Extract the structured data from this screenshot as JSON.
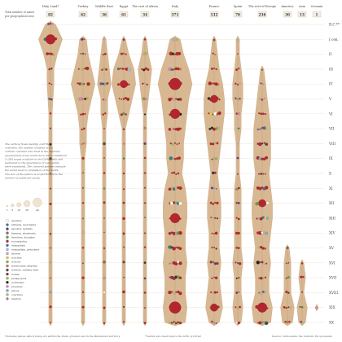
{
  "header": {
    "total_label": "Total number of saints per geographical area"
  },
  "colors": {
    "shape_fill": "#d8b893",
    "shape_stroke": "#c9a57c",
    "sphere_main": "#b3262d",
    "gridline": "#e8ddd0",
    "total_box_fill": "#f3ece2"
  },
  "chart_data": {
    "type": "violin-bubble",
    "title": "",
    "regions": [
      {
        "name": "Holy Land*",
        "total": "82"
      },
      {
        "name": "Turkey",
        "total": "62"
      },
      {
        "name": "Middle East",
        "total": "36"
      },
      {
        "name": "Egypt",
        "total": "61"
      },
      {
        "name": "The rest of Africa",
        "total": "34"
      },
      {
        "name": "Italy",
        "total": "371"
      },
      {
        "name": "France",
        "total": "132"
      },
      {
        "name": "Spain",
        "total": "70"
      },
      {
        "name": "The rest of Europe",
        "total": "236"
      },
      {
        "name": "America",
        "total": "30"
      },
      {
        "name": "Asia",
        "total": "13"
      },
      {
        "name": "Oceania",
        "total": "1"
      }
    ],
    "centuries": [
      "B.C.**",
      "I cen.",
      "II",
      "III",
      "IV",
      "V",
      "VI",
      "VII",
      "VIII",
      "IX",
      "X",
      "XI",
      "XII",
      "XIII",
      "XIV",
      "XV",
      "XVI",
      "XVII",
      "XVIII",
      "XIX",
      "XX"
    ],
    "widths": [
      [
        3,
        7,
        4,
        2,
        2,
        1.5,
        1,
        1,
        1,
        1,
        1,
        1,
        1,
        1,
        1,
        1,
        1,
        1,
        1,
        1,
        1
      ],
      [
        0,
        2,
        3,
        5,
        7,
        5,
        3,
        2,
        2,
        1,
        1,
        1,
        1,
        1,
        1,
        1,
        1,
        1,
        1,
        1,
        1
      ],
      [
        0,
        1,
        2,
        3,
        4,
        2,
        2,
        1,
        1,
        1,
        1,
        1,
        1,
        1,
        1,
        1,
        1,
        1,
        1,
        1,
        1
      ],
      [
        0,
        1,
        3,
        6,
        7,
        5,
        3,
        1,
        1,
        1,
        1,
        1,
        1,
        1,
        1,
        1,
        1,
        1,
        1,
        1,
        1
      ],
      [
        0,
        1,
        2,
        4,
        3,
        2,
        1,
        1,
        1,
        1,
        1,
        1,
        1,
        1,
        1,
        1,
        1,
        1,
        1,
        1,
        1
      ],
      [
        0,
        3,
        5,
        8,
        10,
        8,
        7,
        6,
        5,
        5,
        4,
        6,
        7,
        7,
        6,
        6,
        7,
        6,
        6,
        7,
        6
      ],
      [
        0,
        1,
        2,
        3,
        5,
        6,
        6,
        5,
        4,
        3,
        2,
        3,
        4,
        4,
        3,
        3,
        4,
        3,
        4,
        5,
        3
      ],
      [
        0,
        1,
        1,
        2,
        3,
        3,
        2,
        2,
        1,
        1,
        1,
        2,
        2,
        2,
        2,
        2,
        3,
        2,
        2,
        3,
        2
      ],
      [
        0,
        0,
        0,
        1,
        2,
        3,
        4,
        5,
        5,
        5,
        4,
        5,
        6,
        6,
        5,
        4,
        5,
        4,
        4,
        6,
        5
      ],
      [
        0,
        0,
        0,
        0,
        0,
        0,
        0,
        0,
        0,
        0,
        0,
        0,
        0,
        0,
        0,
        1,
        2,
        2,
        2,
        4,
        3
      ],
      [
        0,
        0,
        0,
        0,
        0,
        0,
        0,
        0,
        0,
        0,
        0,
        0,
        0,
        0,
        0,
        0,
        1,
        2,
        1,
        3,
        2
      ],
      [
        0,
        0,
        0,
        0,
        0,
        0,
        0,
        0,
        0,
        0,
        0,
        0,
        0,
        0,
        0,
        0,
        0,
        0,
        0,
        1,
        0
      ]
    ],
    "large_spheres": [
      {
        "region": 0,
        "century": 1,
        "size": 3
      },
      {
        "region": 3,
        "century": 4,
        "size": 2
      },
      {
        "region": 5,
        "century": 4,
        "size": 4
      },
      {
        "region": 5,
        "century": 6,
        "size": 3
      },
      {
        "region": 5,
        "century": 13,
        "size": 3
      },
      {
        "region": 5,
        "century": 19,
        "size": 4
      },
      {
        "region": 6,
        "century": 5,
        "size": 2
      },
      {
        "region": 6,
        "century": 19,
        "size": 2
      },
      {
        "region": 8,
        "century": 12,
        "size": 2
      },
      {
        "region": 8,
        "century": 19,
        "size": 3
      }
    ],
    "legend": {
      "description": "The vertical flows identify, over the centuries, the number of saints of the catholic calendar who lived in the different geographical areas which have been considered (1,283 pages available in the Cathopedia and dedicated to the description of such saints were examined). The coloured spheres indicate the social level or profession of the saints. The size of the sphere is proportionate to the number of saints per group.",
      "size_values": [
        "1",
        "5",
        "10",
        "20",
        "40"
      ],
      "categories": [
        {
          "label": "apostles",
          "color": "#ffffff"
        },
        {
          "label": "artisans, merchants",
          "color": "#2f7f7a"
        },
        {
          "label": "ascetics, hermits",
          "color": "#5a3a8a"
        },
        {
          "label": "farmers, shepherds",
          "color": "#8b6d3a"
        },
        {
          "label": "devotees, disciples",
          "color": "#6a9e4a"
        },
        {
          "label": "ecclesiastics",
          "color": "#b3262d"
        },
        {
          "label": "evangelists",
          "color": "#3c6fb0"
        },
        {
          "label": "evangelists, preachers",
          "color": "#9bc2d6"
        },
        {
          "label": "thieves",
          "color": "#e0a0b0"
        },
        {
          "label": "scholars",
          "color": "#e2d04a"
        },
        {
          "label": "doctors",
          "color": "#7fb27f"
        },
        {
          "label": "mendicants, pilgrims",
          "color": "#c97a3a"
        },
        {
          "label": "soldiers, military men",
          "color": "#4a4a4a"
        },
        {
          "label": "nobles",
          "color": "#7b2f5a"
        },
        {
          "label": "pedagogues",
          "color": "#a8c04a"
        },
        {
          "label": "politicians",
          "color": "#202020"
        },
        {
          "label": "prophets",
          "color": "#d48ac0"
        },
        {
          "label": "slaves",
          "color": "#7ab0c8"
        },
        {
          "label": "courtiers",
          "color": "#c4b48a"
        },
        {
          "label": "martyrs",
          "color": "#333333"
        }
      ]
    },
    "footnotes": {
      "left": "*includes places which today are within the State of Israel and in the Palestinian territory",
      "middle": "**saints who lived before the birth of Christ",
      "right": "Source: Cathopedia, the Catholic Encyclopedia"
    }
  }
}
